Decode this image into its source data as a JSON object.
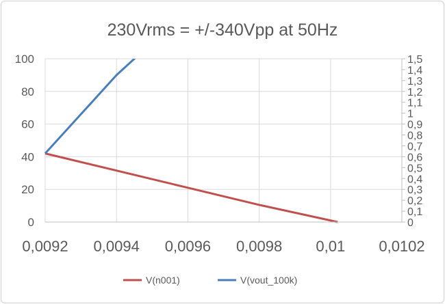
{
  "chart_data": {
    "type": "line",
    "title": "230Vrms = +/-340Vpp at 50Hz",
    "xlim": [
      0.0092,
      0.0102
    ],
    "x_ticks": [
      "0,0092",
      "0,0094",
      "0,0096",
      "0,0098",
      "0,01",
      "0,0102"
    ],
    "x_tick_values": [
      0.0092,
      0.0094,
      0.0096,
      0.0098,
      0.01,
      0.0102
    ],
    "ylim": [
      0,
      100
    ],
    "y_ticks": [
      "0",
      "20",
      "40",
      "60",
      "80",
      "100"
    ],
    "y2lim": [
      0,
      1.5
    ],
    "y2_ticks": [
      "0",
      "0,1",
      "0,2",
      "0,3",
      "0,4",
      "0,5",
      "0,6",
      "0,7",
      "0,8",
      "0,9",
      "1",
      "1,1",
      "1,2",
      "1,3",
      "1,4",
      "1,5"
    ],
    "grid": true,
    "legend": "bottom",
    "series": [
      {
        "name": "V(n001)",
        "color": "#c0504d",
        "x": [
          0.0092,
          0.0094,
          0.0096,
          0.0098,
          0.01002
        ],
        "y": [
          42,
          31.5,
          21,
          10.5,
          0
        ]
      },
      {
        "name": "V(vout_100k)",
        "color": "#4a7ebb",
        "x": [
          0.0092,
          0.0093,
          0.0094,
          0.00945,
          0.0095
        ],
        "y": [
          42,
          66,
          90,
          100,
          110
        ]
      }
    ]
  }
}
